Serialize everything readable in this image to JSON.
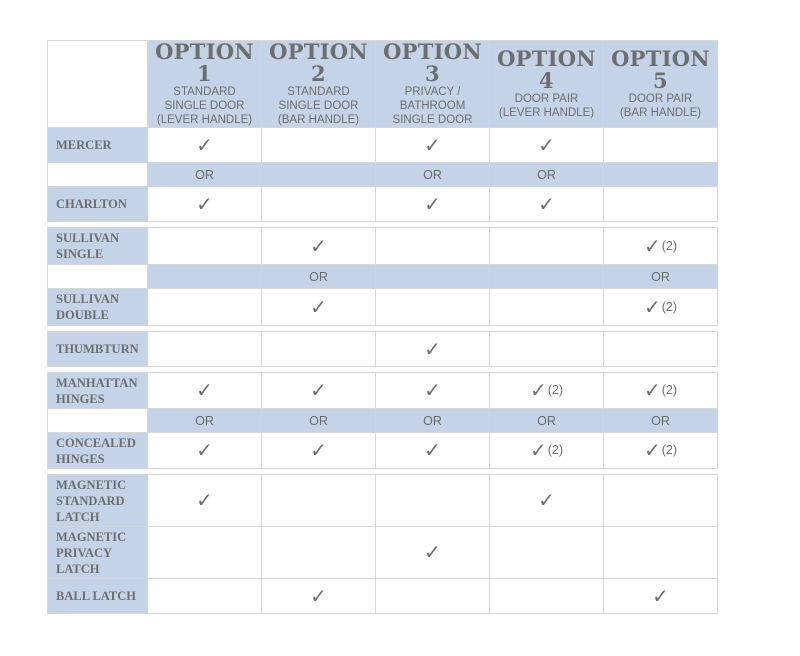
{
  "colors": {
    "header_bg": "#c5d3e8",
    "text": "#6e6e6e",
    "border": "#d6d6d6"
  },
  "check_icon": "✓",
  "header": [
    {
      "title": "OPTION 1",
      "lines": [
        "STANDARD",
        "SINGLE DOOR",
        "(LEVER HANDLE)"
      ]
    },
    {
      "title": "OPTION 2",
      "lines": [
        "STANDARD",
        "SINGLE DOOR",
        "(BAR HANDLE)"
      ]
    },
    {
      "title": "OPTION 3",
      "lines": [
        "PRIVACY /",
        "BATHROOM",
        "SINGLE DOOR"
      ]
    },
    {
      "title": "OPTION 4",
      "lines": [
        "DOOR PAIR",
        "(LEVER HANDLE)"
      ]
    },
    {
      "title": "OPTION 5",
      "lines": [
        "DOOR PAIR",
        "(BAR HANDLE)"
      ]
    }
  ],
  "rows": [
    {
      "type": "item",
      "label": [
        "MERCER"
      ],
      "cells": [
        "check",
        "",
        "check",
        "check",
        ""
      ],
      "h": 34
    },
    {
      "type": "or",
      "label": "OR",
      "cells": [
        true,
        false,
        true,
        true,
        false
      ]
    },
    {
      "type": "item",
      "label": [
        "CHARLTON"
      ],
      "cells": [
        "check",
        "",
        "check",
        "check",
        ""
      ],
      "h": 34
    },
    {
      "type": "spacer"
    },
    {
      "type": "item",
      "label": [
        "SULLIVAN",
        "SINGLE"
      ],
      "cells": [
        "",
        "check",
        "",
        "",
        "check"
      ],
      "notes": [
        "",
        "",
        "",
        "",
        "(2)"
      ],
      "h": 36
    },
    {
      "type": "or",
      "label": "OR",
      "cells": [
        false,
        true,
        false,
        false,
        true
      ]
    },
    {
      "type": "item",
      "label": [
        "SULLIVAN",
        "DOUBLE"
      ],
      "cells": [
        "",
        "check",
        "",
        "",
        "check"
      ],
      "notes": [
        "",
        "",
        "",
        "",
        "(2)"
      ],
      "h": 36
    },
    {
      "type": "spacer"
    },
    {
      "type": "item",
      "label": [
        "THUMBTURN"
      ],
      "cells": [
        "",
        "",
        "check",
        "",
        ""
      ],
      "h": 34
    },
    {
      "type": "spacer"
    },
    {
      "type": "item",
      "label": [
        "MANHATTAN",
        "HINGES"
      ],
      "cells": [
        "check",
        "check",
        "check",
        "check",
        "check"
      ],
      "notes": [
        "",
        "",
        "",
        "(2)",
        "(2)"
      ],
      "h": 35
    },
    {
      "type": "or",
      "label": "OR",
      "cells": [
        true,
        true,
        true,
        true,
        true
      ]
    },
    {
      "type": "item",
      "label": [
        "CONCEALED",
        "HINGES"
      ],
      "cells": [
        "check",
        "check",
        "check",
        "check",
        "check"
      ],
      "notes": [
        "",
        "",
        "",
        "(2)",
        "(2)"
      ],
      "h": 35
    },
    {
      "type": "spacer"
    },
    {
      "type": "item",
      "label": [
        "MAGNETIC",
        "STANDARD",
        "LATCH"
      ],
      "cells": [
        "check",
        "",
        "",
        "check",
        ""
      ],
      "h": 51
    },
    {
      "type": "item",
      "label": [
        "MAGNETIC",
        "PRIVACY",
        "LATCH"
      ],
      "cells": [
        "",
        "",
        "check",
        "",
        ""
      ],
      "h": 51
    },
    {
      "type": "item",
      "label": [
        "BALL LATCH"
      ],
      "cells": [
        "",
        "check",
        "",
        "",
        "check"
      ],
      "h": 34
    }
  ]
}
